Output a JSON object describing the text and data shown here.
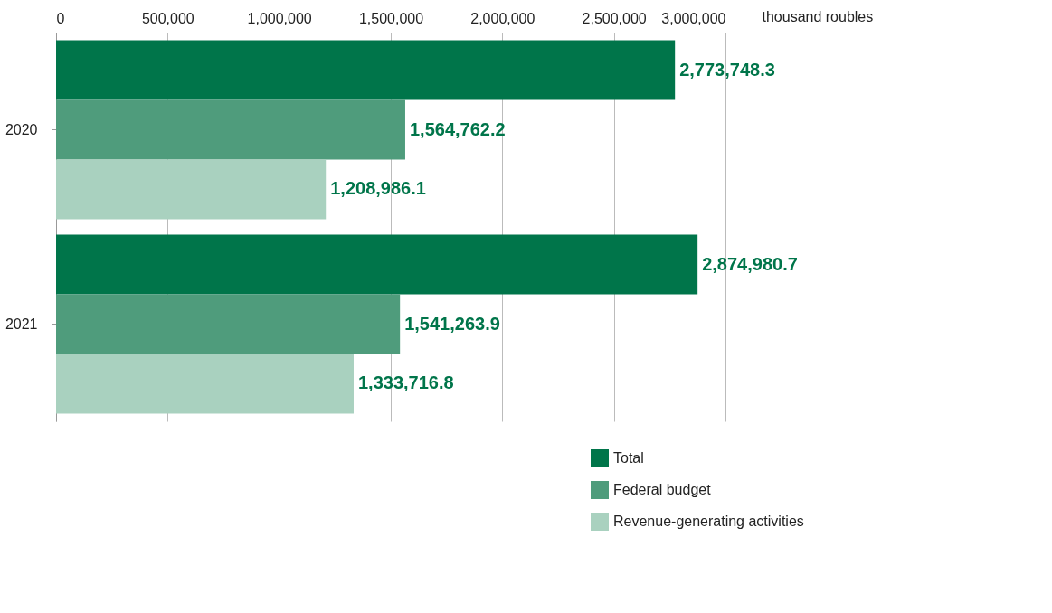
{
  "chart_data": {
    "type": "bar",
    "orientation": "horizontal",
    "xlabel": "thousand roubles",
    "categories": [
      "2020",
      "2021"
    ],
    "series": [
      {
        "name": "Total",
        "color": "#00754a",
        "values": [
          2773748.3,
          2874980.7
        ],
        "value_labels": [
          "2,773,748.3",
          "2,874,980.7"
        ]
      },
      {
        "name": "Federal budget",
        "color": "#4f9c7c",
        "values": [
          1564762.2,
          1541263.9
        ],
        "value_labels": [
          "1,564,762.2",
          "1,541,263.9"
        ]
      },
      {
        "name": "Revenue-generating activities",
        "color": "#a9d1bf",
        "values": [
          1208986.1,
          1333716.8
        ],
        "value_labels": [
          "1,208,986.1",
          "1,333,716.8"
        ]
      }
    ],
    "xlim": [
      0,
      3000000
    ],
    "xticks": [
      {
        "value": 0,
        "label": "0"
      },
      {
        "value": 500000,
        "label": "500,000"
      },
      {
        "value": 1000000,
        "label": "1,000,000"
      },
      {
        "value": 1500000,
        "label": "1,500,000"
      },
      {
        "value": 2000000,
        "label": "2,000,000"
      },
      {
        "value": 2500000,
        "label": "2,500,000"
      },
      {
        "value": 3000000,
        "label": "3,000,000"
      }
    ],
    "grid": "x",
    "legend": "bottom right"
  }
}
